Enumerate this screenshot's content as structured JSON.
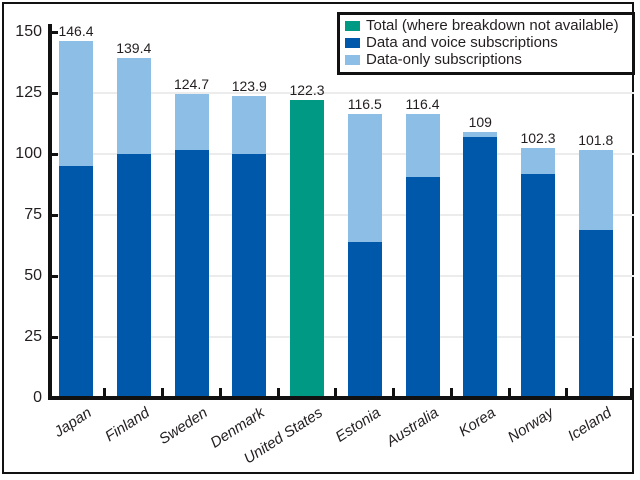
{
  "colors": {
    "data_voice": "#0058AA",
    "data_only": "#8CBEE6",
    "total_teal": "#009A84",
    "gridline": "#ECECEC",
    "axis": "#111111",
    "text": "#231F20"
  },
  "legend": {
    "items": [
      {
        "label": "Total (where breakdown not available)",
        "color": "#009A84",
        "icon": "teal-swatch"
      },
      {
        "label": "Data and voice subscriptions",
        "color": "#0058AA",
        "icon": "dark-blue-swatch"
      },
      {
        "label": "Data-only subscriptions",
        "color": "#8CBEE6",
        "icon": "light-blue-swatch"
      }
    ]
  },
  "chart_data": {
    "type": "bar",
    "subtype": "stacked",
    "title": "",
    "xlabel": "",
    "ylabel": "",
    "ylim": [
      0,
      150
    ],
    "yticks": [
      0,
      25,
      50,
      75,
      100,
      125,
      150
    ],
    "grid": true,
    "legend_position": "top-right",
    "categories": [
      "Japan",
      "Finland",
      "Sweden",
      "Denmark",
      "United States",
      "Estonia",
      "Australia",
      "Korea",
      "Norway",
      "Iceland"
    ],
    "totals": [
      146.4,
      139.4,
      124.7,
      123.9,
      122.3,
      116.5,
      116.4,
      109,
      102.3,
      101.8
    ],
    "total_labels": [
      "146.4",
      "139.4",
      "124.7",
      "123.9",
      "122.3",
      "116.5",
      "116.4",
      "109",
      "102.3",
      "101.8"
    ],
    "series": [
      {
        "name": "Data and voice subscriptions",
        "color": "#0058AA",
        "values": [
          95,
          100,
          101.5,
          100,
          0,
          64,
          90.6,
          107,
          92,
          69
        ]
      },
      {
        "name": "Data-only subscriptions",
        "color": "#8CBEE6",
        "values": [
          51.4,
          39.4,
          23.2,
          23.9,
          0,
          52.5,
          25.8,
          2,
          10.3,
          32.8
        ]
      },
      {
        "name": "Total (where breakdown not available)",
        "color": "#009A84",
        "values": [
          0,
          0,
          0,
          0,
          122.3,
          0,
          0,
          0,
          0,
          0
        ]
      }
    ]
  }
}
